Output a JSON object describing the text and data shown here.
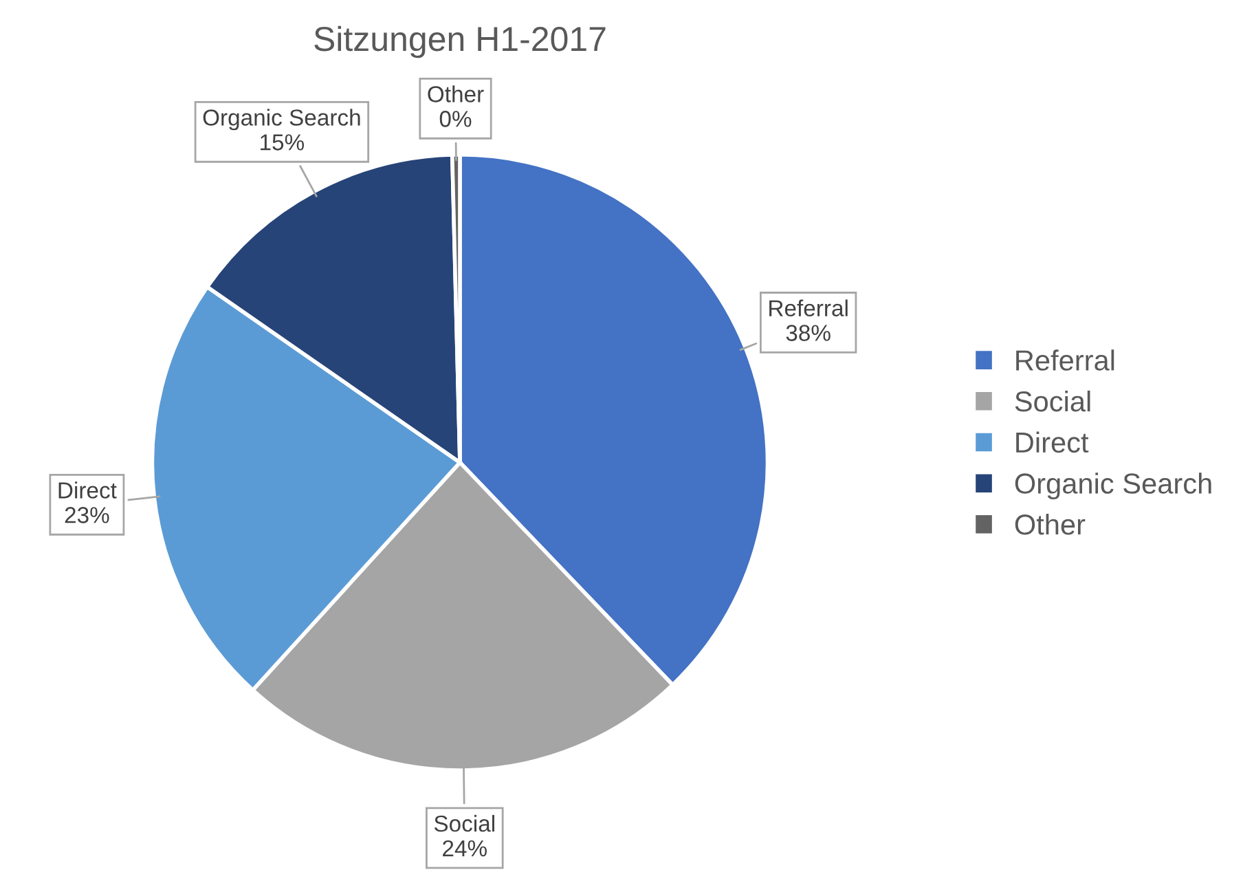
{
  "chart_data": {
    "type": "pie",
    "title": "Sitzungen H1-2017",
    "categories": [
      "Referral",
      "Social",
      "Direct",
      "Organic Search",
      "Other"
    ],
    "values": [
      38,
      24,
      23,
      15,
      0.4
    ],
    "value_labels": [
      "38%",
      "24%",
      "23%",
      "15%",
      "0%"
    ],
    "colors": [
      "#4472c4",
      "#a5a5a5",
      "#5b9bd5",
      "#264478",
      "#636363"
    ],
    "legend": "right"
  }
}
